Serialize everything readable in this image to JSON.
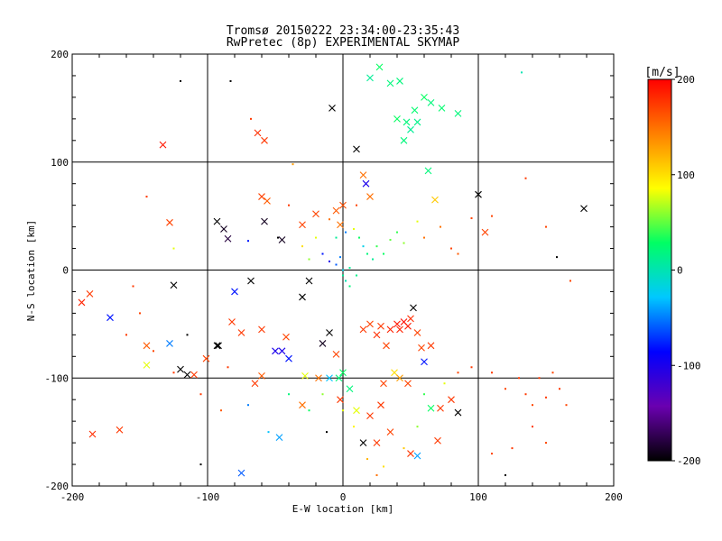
{
  "chart_data": {
    "type": "scatter",
    "title": "Tromsø 20150222 23:34:00-23:35:43",
    "subtitle": "RwPretec (8p) EXPERIMENTAL SKYMAP",
    "xlabel": "E-W location [km]",
    "ylabel": "N-S location [km]",
    "xlim": [
      -200,
      200
    ],
    "ylim": [
      -200,
      200
    ],
    "xticks": [
      -200,
      -100,
      0,
      100,
      200
    ],
    "yticks": [
      -200,
      -100,
      0,
      100,
      200
    ],
    "grid": true,
    "colorbar": {
      "label": "[m/s]",
      "range": [
        -200,
        200
      ],
      "ticks": [
        -200,
        -100,
        0,
        100,
        200
      ],
      "stops": [
        "#000000",
        "#6a00b0",
        "#0000ff",
        "#00c8ff",
        "#00ff64",
        "#ffff00",
        "#ff8000",
        "#ff0000"
      ]
    },
    "series": [
      {
        "marker": "x",
        "points": [
          [
            -133,
            116,
            190
          ],
          [
            -128,
            44,
            170
          ],
          [
            -93,
            45,
            -200
          ],
          [
            -88,
            38,
            -190
          ],
          [
            -85,
            29,
            -180
          ],
          [
            -63,
            127,
            180
          ],
          [
            -58,
            120,
            175
          ],
          [
            -60,
            68,
            170
          ],
          [
            -56,
            64,
            160
          ],
          [
            -58,
            45,
            -190
          ],
          [
            -45,
            28,
            -190
          ],
          [
            -30,
            42,
            170
          ],
          [
            -20,
            52,
            170
          ],
          [
            -8,
            150,
            -200
          ],
          [
            -5,
            55,
            160
          ],
          [
            -2,
            42,
            150
          ],
          [
            0,
            60,
            165
          ],
          [
            10,
            112,
            -200
          ],
          [
            15,
            88,
            150
          ],
          [
            17,
            80,
            -100
          ],
          [
            20,
            68,
            150
          ],
          [
            20,
            178,
            10
          ],
          [
            27,
            188,
            30
          ],
          [
            35,
            173,
            20
          ],
          [
            42,
            175,
            20
          ],
          [
            40,
            140,
            30
          ],
          [
            47,
            137,
            20
          ],
          [
            53,
            148,
            25
          ],
          [
            50,
            130,
            10
          ],
          [
            55,
            137,
            15
          ],
          [
            45,
            120,
            20
          ],
          [
            60,
            160,
            30
          ],
          [
            65,
            155,
            20
          ],
          [
            73,
            150,
            25
          ],
          [
            85,
            145,
            20
          ],
          [
            63,
            92,
            20
          ],
          [
            68,
            65,
            110
          ],
          [
            100,
            70,
            -200
          ],
          [
            105,
            35,
            170
          ],
          [
            178,
            57,
            -200
          ],
          [
            -193,
            -30,
            185
          ],
          [
            -187,
            -22,
            175
          ],
          [
            -172,
            -44,
            -80
          ],
          [
            -125,
            -14,
            -200
          ],
          [
            -145,
            -70,
            160
          ],
          [
            -128,
            -68,
            -50
          ],
          [
            -115,
            -97,
            -200
          ],
          [
            -110,
            -97,
            175
          ],
          [
            -101,
            -82,
            170
          ],
          [
            -92,
            -70,
            -200
          ],
          [
            -82,
            -48,
            175
          ],
          [
            -75,
            -58,
            175
          ],
          [
            -68,
            -10,
            -200
          ],
          [
            -80,
            -20,
            -80
          ],
          [
            -60,
            -55,
            175
          ],
          [
            -45,
            -75,
            -100
          ],
          [
            -50,
            -75,
            -100
          ],
          [
            -40,
            -82,
            -80
          ],
          [
            -42,
            -62,
            170
          ],
          [
            -25,
            -10,
            -200
          ],
          [
            -30,
            -25,
            -200
          ],
          [
            -15,
            -68,
            -190
          ],
          [
            -10,
            -58,
            -200
          ],
          [
            -5,
            -78,
            170
          ],
          [
            -10,
            -100,
            -30
          ],
          [
            -2,
            -120,
            175
          ],
          [
            0,
            -95,
            30
          ],
          [
            5,
            -110,
            20
          ],
          [
            10,
            -130,
            80
          ],
          [
            15,
            -55,
            175
          ],
          [
            20,
            -50,
            170
          ],
          [
            25,
            -60,
            180
          ],
          [
            28,
            -52,
            175
          ],
          [
            32,
            -70,
            170
          ],
          [
            35,
            -55,
            185
          ],
          [
            40,
            -50,
            190
          ],
          [
            42,
            -55,
            185
          ],
          [
            45,
            -48,
            195
          ],
          [
            48,
            -52,
            190
          ],
          [
            50,
            -45,
            180
          ],
          [
            55,
            -58,
            170
          ],
          [
            58,
            -72,
            170
          ],
          [
            60,
            -85,
            -80
          ],
          [
            65,
            -70,
            175
          ],
          [
            52,
            -35,
            -200
          ],
          [
            38,
            -95,
            100
          ],
          [
            42,
            -100,
            130
          ],
          [
            48,
            -105,
            170
          ],
          [
            30,
            -105,
            170
          ],
          [
            28,
            -125,
            175
          ],
          [
            20,
            -135,
            175
          ],
          [
            15,
            -160,
            -200
          ],
          [
            25,
            -160,
            175
          ],
          [
            35,
            -150,
            170
          ],
          [
            50,
            -170,
            175
          ],
          [
            55,
            -172,
            -40
          ],
          [
            65,
            -128,
            30
          ],
          [
            72,
            -128,
            175
          ],
          [
            80,
            -120,
            175
          ],
          [
            85,
            -132,
            -200
          ],
          [
            70,
            -158,
            175
          ],
          [
            -3,
            -100,
            20
          ],
          [
            -18,
            -100,
            150
          ],
          [
            -28,
            -98,
            80
          ],
          [
            -60,
            -98,
            160
          ],
          [
            -120,
            -92,
            -200
          ],
          [
            -145,
            -88,
            80
          ],
          [
            -185,
            -152,
            180
          ],
          [
            -165,
            -148,
            175
          ],
          [
            -65,
            -105,
            175
          ],
          [
            -30,
            -125,
            150
          ],
          [
            -47,
            -155,
            -40
          ],
          [
            -75,
            -188,
            -60
          ],
          [
            -93,
            -70,
            -200
          ]
        ]
      },
      {
        "marker": "dot",
        "points": [
          [
            -120,
            175,
            -200
          ],
          [
            -83,
            175,
            -200
          ],
          [
            -68,
            140,
            175
          ],
          [
            -37,
            98,
            130
          ],
          [
            -10,
            47,
            150
          ],
          [
            -5,
            30,
            10
          ],
          [
            2,
            35,
            -50
          ],
          [
            8,
            38,
            80
          ],
          [
            12,
            30,
            30
          ],
          [
            15,
            22,
            -20
          ],
          [
            18,
            15,
            20
          ],
          [
            22,
            10,
            10
          ],
          [
            -15,
            15,
            -80
          ],
          [
            -10,
            8,
            -100
          ],
          [
            -5,
            5,
            -60
          ],
          [
            0,
            0,
            -20
          ],
          [
            5,
            2,
            10
          ],
          [
            0,
            -5,
            10
          ],
          [
            2,
            -10,
            0
          ],
          [
            5,
            -15,
            20
          ],
          [
            10,
            -5,
            15
          ],
          [
            -2,
            12,
            -50
          ],
          [
            25,
            22,
            40
          ],
          [
            30,
            15,
            30
          ],
          [
            35,
            28,
            50
          ],
          [
            40,
            35,
            40
          ],
          [
            45,
            25,
            60
          ],
          [
            55,
            45,
            80
          ],
          [
            60,
            30,
            150
          ],
          [
            72,
            40,
            150
          ],
          [
            80,
            20,
            170
          ],
          [
            85,
            15,
            160
          ],
          [
            95,
            48,
            170
          ],
          [
            110,
            50,
            170
          ],
          [
            135,
            85,
            175
          ],
          [
            150,
            40,
            170
          ],
          [
            158,
            12,
            -200
          ],
          [
            168,
            -10,
            170
          ],
          [
            -155,
            -15,
            175
          ],
          [
            -160,
            -60,
            175
          ],
          [
            -140,
            -75,
            170
          ],
          [
            -125,
            -95,
            175
          ],
          [
            -105,
            -115,
            175
          ],
          [
            -105,
            -180,
            -200
          ],
          [
            -90,
            -130,
            160
          ],
          [
            -70,
            -125,
            -50
          ],
          [
            -55,
            -150,
            -30
          ],
          [
            -40,
            -115,
            20
          ],
          [
            -25,
            -130,
            30
          ],
          [
            -15,
            -115,
            60
          ],
          [
            -12,
            -150,
            -200
          ],
          [
            0,
            -130,
            80
          ],
          [
            8,
            -145,
            90
          ],
          [
            18,
            -175,
            120
          ],
          [
            25,
            -190,
            150
          ],
          [
            30,
            -182,
            100
          ],
          [
            45,
            -165,
            110
          ],
          [
            55,
            -145,
            60
          ],
          [
            60,
            -115,
            40
          ],
          [
            75,
            -105,
            80
          ],
          [
            85,
            -95,
            170
          ],
          [
            95,
            -90,
            175
          ],
          [
            110,
            -95,
            175
          ],
          [
            120,
            -110,
            170
          ],
          [
            130,
            -100,
            175
          ],
          [
            135,
            -115,
            175
          ],
          [
            140,
            -125,
            170
          ],
          [
            145,
            -100,
            175
          ],
          [
            150,
            -118,
            175
          ],
          [
            155,
            -95,
            170
          ],
          [
            160,
            -110,
            175
          ],
          [
            165,
            -125,
            170
          ],
          [
            140,
            -145,
            175
          ],
          [
            150,
            -160,
            170
          ],
          [
            125,
            -165,
            175
          ],
          [
            110,
            -170,
            170
          ],
          [
            120,
            -190,
            -200
          ],
          [
            132,
            183,
            0
          ],
          [
            -40,
            60,
            175
          ],
          [
            -48,
            30,
            -200
          ],
          [
            -70,
            27,
            -80
          ],
          [
            -30,
            22,
            100
          ],
          [
            -20,
            30,
            80
          ],
          [
            -25,
            10,
            60
          ],
          [
            10,
            60,
            170
          ],
          [
            -145,
            68,
            175
          ],
          [
            -125,
            20,
            80
          ],
          [
            -150,
            -40,
            170
          ],
          [
            -115,
            -60,
            -200
          ],
          [
            -85,
            -90,
            175
          ]
        ]
      }
    ]
  }
}
